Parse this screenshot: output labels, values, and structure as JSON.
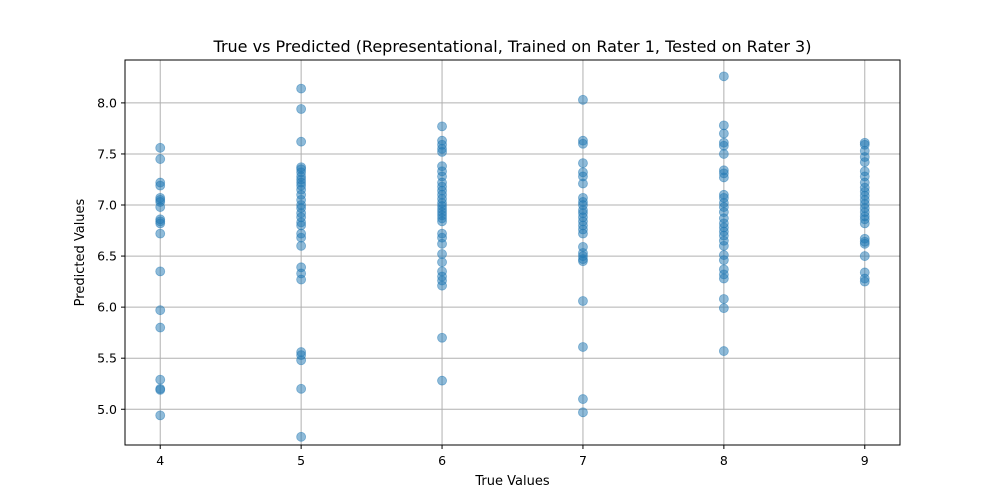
{
  "chart_data": {
    "type": "scatter",
    "title": "True vs Predicted (Representational, Trained on Rater 1, Tested on Rater 3)",
    "xlabel": "True Values",
    "ylabel": "Predicted Values",
    "xlim": [
      3.75,
      9.25
    ],
    "ylim": [
      4.65,
      8.42
    ],
    "xticks": [
      "4",
      "5",
      "6",
      "7",
      "8",
      "9"
    ],
    "yticks": [
      "5.0",
      "5.5",
      "6.0",
      "6.5",
      "7.0",
      "7.5",
      "8.0"
    ],
    "grid": true,
    "point_color": "#1f77b4",
    "point_alpha": 0.5,
    "series": [
      {
        "points": [
          [
            4,
            7.56
          ],
          [
            4,
            7.45
          ],
          [
            4,
            7.22
          ],
          [
            4,
            7.19
          ],
          [
            4,
            7.07
          ],
          [
            4,
            7.05
          ],
          [
            4,
            7.03
          ],
          [
            4,
            6.98
          ],
          [
            4,
            6.86
          ],
          [
            4,
            6.84
          ],
          [
            4,
            6.82
          ],
          [
            4,
            6.72
          ],
          [
            4,
            6.35
          ],
          [
            4,
            5.97
          ],
          [
            4,
            5.8
          ],
          [
            4,
            5.29
          ],
          [
            4,
            5.2
          ],
          [
            4,
            5.19
          ],
          [
            4,
            4.94
          ],
          [
            5,
            8.14
          ],
          [
            5,
            7.94
          ],
          [
            5,
            7.62
          ],
          [
            5,
            7.37
          ],
          [
            5,
            7.35
          ],
          [
            5,
            7.32
          ],
          [
            5,
            7.28
          ],
          [
            5,
            7.25
          ],
          [
            5,
            7.22
          ],
          [
            5,
            7.19
          ],
          [
            5,
            7.15
          ],
          [
            5,
            7.1
          ],
          [
            5,
            7.05
          ],
          [
            5,
            7.0
          ],
          [
            5,
            6.97
          ],
          [
            5,
            6.92
          ],
          [
            5,
            6.88
          ],
          [
            5,
            6.83
          ],
          [
            5,
            6.8
          ],
          [
            5,
            6.72
          ],
          [
            5,
            6.68
          ],
          [
            5,
            6.6
          ],
          [
            5,
            6.39
          ],
          [
            5,
            6.33
          ],
          [
            5,
            6.27
          ],
          [
            5,
            5.56
          ],
          [
            5,
            5.53
          ],
          [
            5,
            5.48
          ],
          [
            5,
            5.2
          ],
          [
            5,
            4.73
          ],
          [
            6,
            7.77
          ],
          [
            6,
            7.63
          ],
          [
            6,
            7.59
          ],
          [
            6,
            7.55
          ],
          [
            6,
            7.52
          ],
          [
            6,
            7.38
          ],
          [
            6,
            7.33
          ],
          [
            6,
            7.28
          ],
          [
            6,
            7.22
          ],
          [
            6,
            7.18
          ],
          [
            6,
            7.14
          ],
          [
            6,
            7.1
          ],
          [
            6,
            7.06
          ],
          [
            6,
            7.02
          ],
          [
            6,
            6.99
          ],
          [
            6,
            6.96
          ],
          [
            6,
            6.93
          ],
          [
            6,
            6.9
          ],
          [
            6,
            6.87
          ],
          [
            6,
            6.84
          ],
          [
            6,
            6.72
          ],
          [
            6,
            6.68
          ],
          [
            6,
            6.62
          ],
          [
            6,
            6.52
          ],
          [
            6,
            6.44
          ],
          [
            6,
            6.35
          ],
          [
            6,
            6.3
          ],
          [
            6,
            6.26
          ],
          [
            6,
            6.21
          ],
          [
            6,
            5.7
          ],
          [
            6,
            5.28
          ],
          [
            7,
            8.03
          ],
          [
            7,
            7.63
          ],
          [
            7,
            7.6
          ],
          [
            7,
            7.41
          ],
          [
            7,
            7.32
          ],
          [
            7,
            7.28
          ],
          [
            7,
            7.21
          ],
          [
            7,
            7.07
          ],
          [
            7,
            7.03
          ],
          [
            7,
            7.0
          ],
          [
            7,
            6.95
          ],
          [
            7,
            6.92
          ],
          [
            7,
            6.88
          ],
          [
            7,
            6.84
          ],
          [
            7,
            6.8
          ],
          [
            7,
            6.76
          ],
          [
            7,
            6.72
          ],
          [
            7,
            6.59
          ],
          [
            7,
            6.53
          ],
          [
            7,
            6.5
          ],
          [
            7,
            6.47
          ],
          [
            7,
            6.45
          ],
          [
            7,
            6.06
          ],
          [
            7,
            5.61
          ],
          [
            7,
            5.1
          ],
          [
            7,
            4.97
          ],
          [
            8,
            8.26
          ],
          [
            8,
            7.78
          ],
          [
            8,
            7.7
          ],
          [
            8,
            7.61
          ],
          [
            8,
            7.58
          ],
          [
            8,
            7.5
          ],
          [
            8,
            7.34
          ],
          [
            8,
            7.31
          ],
          [
            8,
            7.27
          ],
          [
            8,
            7.1
          ],
          [
            8,
            7.07
          ],
          [
            8,
            7.02
          ],
          [
            8,
            6.98
          ],
          [
            8,
            6.93
          ],
          [
            8,
            6.87
          ],
          [
            8,
            6.82
          ],
          [
            8,
            6.78
          ],
          [
            8,
            6.74
          ],
          [
            8,
            6.7
          ],
          [
            8,
            6.65
          ],
          [
            8,
            6.6
          ],
          [
            8,
            6.51
          ],
          [
            8,
            6.46
          ],
          [
            8,
            6.37
          ],
          [
            8,
            6.32
          ],
          [
            8,
            6.28
          ],
          [
            8,
            6.08
          ],
          [
            8,
            5.99
          ],
          [
            8,
            5.57
          ],
          [
            9,
            7.61
          ],
          [
            9,
            7.59
          ],
          [
            9,
            7.53
          ],
          [
            9,
            7.47
          ],
          [
            9,
            7.42
          ],
          [
            9,
            7.33
          ],
          [
            9,
            7.28
          ],
          [
            9,
            7.22
          ],
          [
            9,
            7.17
          ],
          [
            9,
            7.13
          ],
          [
            9,
            7.09
          ],
          [
            9,
            7.05
          ],
          [
            9,
            7.01
          ],
          [
            9,
            6.97
          ],
          [
            9,
            6.93
          ],
          [
            9,
            6.89
          ],
          [
            9,
            6.86
          ],
          [
            9,
            6.82
          ],
          [
            9,
            6.67
          ],
          [
            9,
            6.64
          ],
          [
            9,
            6.62
          ],
          [
            9,
            6.5
          ],
          [
            9,
            6.34
          ],
          [
            9,
            6.28
          ],
          [
            9,
            6.25
          ]
        ]
      }
    ]
  }
}
